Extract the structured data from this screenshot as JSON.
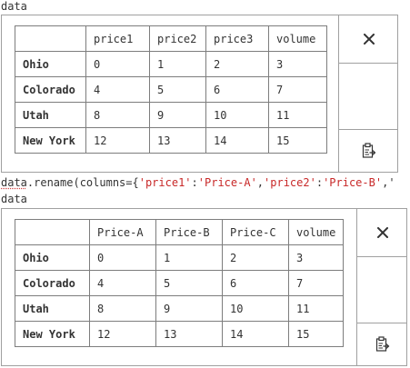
{
  "cell1": {
    "output_label": "data",
    "table": {
      "columns": [
        "price1",
        "price2",
        "price3",
        "volume"
      ],
      "rows": [
        {
          "index": "Ohio",
          "values": [
            "0",
            "1",
            "2",
            "3"
          ]
        },
        {
          "index": "Colorado",
          "values": [
            "4",
            "5",
            "6",
            "7"
          ]
        },
        {
          "index": "Utah",
          "values": [
            "8",
            "9",
            "10",
            "11"
          ]
        },
        {
          "index": "New York",
          "values": [
            "12",
            "13",
            "14",
            "15"
          ]
        }
      ]
    }
  },
  "code": {
    "var": "data",
    "method": ".rename(columns={",
    "key1": "'price1'",
    "sep1": ":",
    "val1": "'Price-A'",
    "comma1": ",",
    "key2": "'price2'",
    "sep2": ":",
    "val2": "'Price-B'",
    "tail": ",'"
  },
  "cell2": {
    "output_label": "data",
    "table": {
      "columns": [
        "Price-A",
        "Price-B",
        "Price-C",
        "volume"
      ],
      "rows": [
        {
          "index": "Ohio",
          "values": [
            "0",
            "1",
            "2",
            "3"
          ]
        },
        {
          "index": "Colorado",
          "values": [
            "4",
            "5",
            "6",
            "7"
          ]
        },
        {
          "index": "Utah",
          "values": [
            "8",
            "9",
            "10",
            "11"
          ]
        },
        {
          "index": "New York",
          "values": [
            "12",
            "13",
            "14",
            "15"
          ]
        }
      ]
    }
  },
  "icons": {
    "close": "close-icon",
    "copy": "clipboard-copy-icon"
  },
  "colors": {
    "border": "#a0a0a0",
    "table_border": "#7d7d7d",
    "text": "#333333",
    "string": "#c82828"
  }
}
